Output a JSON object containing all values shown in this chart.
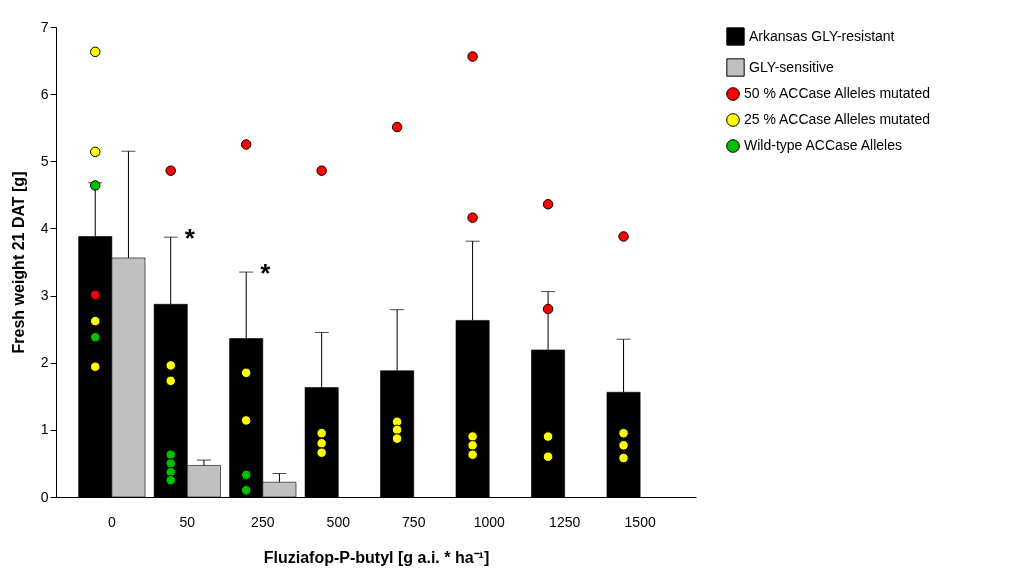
{
  "chart_data": {
    "type": "bar",
    "xlabel": "Fluziafop-P-butyl [g a.i. * ha⁻¹]",
    "ylabel": "Fresh weight 21 DAT [g]",
    "categories": [
      "0",
      "50",
      "250",
      "500",
      "750",
      "1000",
      "1250",
      "1500"
    ],
    "ylim": [
      0,
      7
    ],
    "yticks": [
      {
        "value": 0,
        "label": "0"
      },
      {
        "value": 1,
        "label": "1"
      },
      {
        "value": 2,
        "label": "2"
      },
      {
        "value": 3,
        "label": "3"
      },
      {
        "value": 4,
        "label": "4"
      },
      {
        "value": 5,
        "label": "5"
      },
      {
        "value": 6,
        "label": "6"
      },
      {
        "value": 7,
        "label": "7"
      }
    ],
    "legend": "right",
    "marker": "circle",
    "series": [
      {
        "name": "Arkansas  GLY-resistant",
        "color": "#000000",
        "values": [
          3.88,
          2.87,
          2.36,
          1.63,
          1.88,
          2.63,
          2.19,
          1.56
        ],
        "errors": [
          [
            3.88,
            4.68
          ],
          [
            2.87,
            3.87
          ],
          [
            2.36,
            3.35
          ],
          [
            1.63,
            2.45
          ],
          [
            1.88,
            2.79
          ],
          [
            2.63,
            3.81
          ],
          [
            2.19,
            3.06
          ],
          [
            1.56,
            2.35
          ]
        ]
      },
      {
        "name": "GLY-sensitive",
        "color": "#c0c0c0",
        "values": [
          3.56,
          0.47,
          0.22,
          null,
          null,
          null,
          null,
          null
        ],
        "errors": [
          [
            3.56,
            5.15
          ],
          [
            0.47,
            0.55
          ],
          [
            0.22,
            0.35
          ],
          null,
          null,
          null,
          null,
          null
        ]
      },
      {
        "name": "50 % ACCase Alleles mutated",
        "type": "scatter",
        "color": "#ff0000",
        "values": [
          3.01,
          4.86,
          5.25,
          4.86,
          5.51,
          6.56,
          4.36,
          3.88
        ]
      },
      {
        "type": "scatter",
        "color": "#ff0000",
        "values": [
          null,
          null,
          null,
          null,
          null,
          4.16,
          2.8,
          null
        ]
      },
      {
        "name": "25 % ACCase Alleles mutated",
        "type": "scatter",
        "color": "#ffff00",
        "values": [
          6.63,
          1.96,
          1.85,
          0.95,
          1.12,
          0.9,
          0.9,
          0.95
        ]
      },
      {
        "type": "scatter",
        "color": "#ffff00",
        "values": [
          5.14,
          1.73,
          1.14,
          0.8,
          1.0,
          0.77,
          0.6,
          0.77
        ]
      },
      {
        "type": "scatter",
        "color": "#ffff00",
        "values": [
          2.62,
          null,
          null,
          0.66,
          0.87,
          0.63,
          null,
          0.58
        ]
      },
      {
        "type": "scatter",
        "color": "#ffff00",
        "values": [
          1.94,
          null,
          null,
          null,
          null,
          null,
          null,
          null
        ]
      },
      {
        "name": "Wild-type ACCase Alleles",
        "type": "scatter",
        "color": "#00c000",
        "values": [
          4.64,
          0.63,
          0.33,
          null,
          null,
          null,
          null,
          null
        ]
      },
      {
        "type": "scatter",
        "color": "#00c000",
        "values": [
          2.38,
          0.5,
          0.1,
          null,
          null,
          null,
          null,
          null
        ]
      },
      {
        "type": "scatter",
        "color": "#00c000",
        "values": [
          null,
          0.37,
          null,
          null,
          null,
          null,
          null,
          null
        ]
      },
      {
        "type": "scatter",
        "color": "#00c000",
        "values": [
          null,
          0.25,
          null,
          null,
          null,
          null,
          null,
          null
        ]
      }
    ],
    "annotations": [
      "*",
      "*"
    ]
  }
}
